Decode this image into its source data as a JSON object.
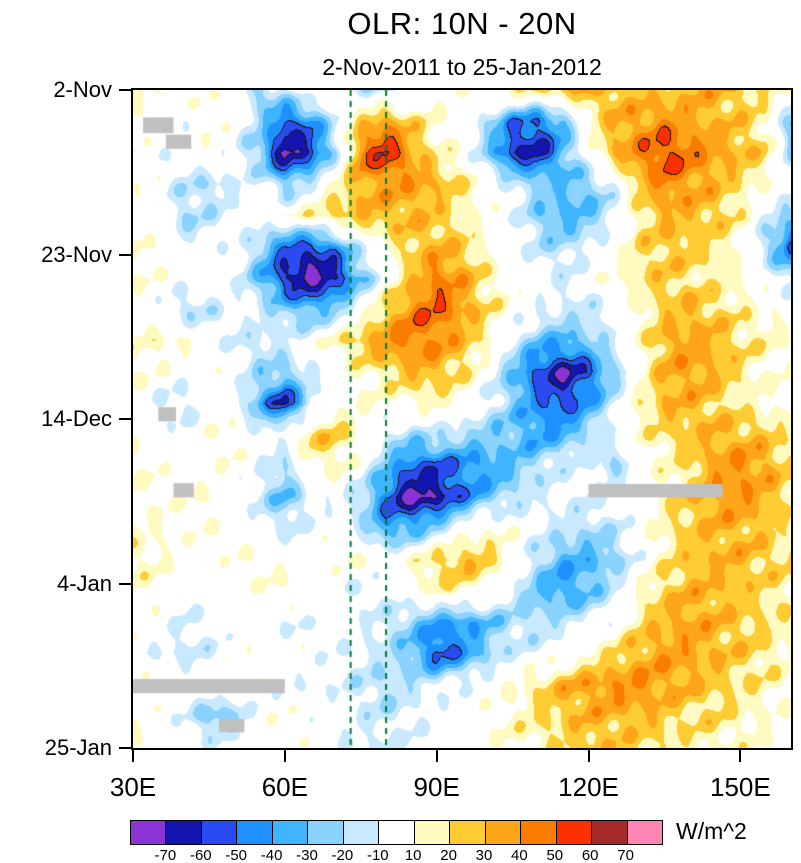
{
  "chart_data": {
    "type": "heatmap",
    "title": "OLR: 10N - 20N",
    "subtitle": "2-Nov-2011 to 25-Jan-2012",
    "units": "W/m^2",
    "xlim": [
      30,
      160
    ],
    "ylim_days": [
      0,
      84
    ],
    "xticks": [
      {
        "lon": 30,
        "label": "30E"
      },
      {
        "lon": 60,
        "label": "60E"
      },
      {
        "lon": 90,
        "label": "90E"
      },
      {
        "lon": 120,
        "label": "120E"
      },
      {
        "lon": 150,
        "label": "150E"
      }
    ],
    "yticks": [
      {
        "day": 0,
        "label": "2-Nov"
      },
      {
        "day": 21,
        "label": "23-Nov"
      },
      {
        "day": 42,
        "label": "14-Dec"
      },
      {
        "day": 63,
        "label": "4-Jan"
      },
      {
        "day": 84,
        "label": "25-Jan"
      }
    ],
    "reference_lines": {
      "color": "#007A33",
      "style": "dashed",
      "lons": [
        73,
        80
      ]
    },
    "missing_data_color": "#C0C0C0",
    "missing_patches": [
      {
        "lon": [
          32,
          38
        ],
        "day": [
          3.5,
          5.5
        ]
      },
      {
        "lon": [
          36.5,
          41.5
        ],
        "day": [
          5.7,
          7.5
        ]
      },
      {
        "lon": [
          35,
          38.5
        ],
        "day": [
          40.5,
          42.3
        ]
      },
      {
        "lon": [
          38,
          42
        ],
        "day": [
          50.2,
          52
        ]
      },
      {
        "lon": [
          120,
          146.5
        ],
        "day": [
          50.3,
          52
        ]
      },
      {
        "lon": [
          30,
          60
        ],
        "day": [
          75.2,
          77
        ]
      },
      {
        "lon": [
          47,
          52
        ],
        "day": [
          80.3,
          82
        ]
      }
    ],
    "colorbar": {
      "levels": [
        -70,
        -60,
        -50,
        -40,
        -30,
        -20,
        -10,
        10,
        20,
        30,
        40,
        50,
        60,
        70
      ],
      "colors": [
        "#8A33D6",
        "#1414AE",
        "#2B4BF2",
        "#1E90FF",
        "#3FB4FF",
        "#8AD2FF",
        "#C8E9FF",
        "#FFFFFF",
        "#FFFAC0",
        "#FFCC33",
        "#FFA519",
        "#FA7D00",
        "#FD3000",
        "#A52A2A",
        "#FF85B5"
      ]
    },
    "grid": {
      "lons": [
        30,
        35,
        40,
        45,
        50,
        55,
        60,
        65,
        70,
        75,
        80,
        85,
        90,
        95,
        100,
        105,
        110,
        115,
        120,
        125,
        130,
        135,
        140,
        145,
        150,
        155,
        160
      ],
      "days": [
        0,
        4,
        8,
        12,
        16,
        20,
        24,
        28,
        32,
        36,
        40,
        44,
        48,
        52,
        56,
        60,
        64,
        68,
        72,
        76,
        80,
        84
      ],
      "values": [
        [
          10,
          8,
          5,
          5,
          0,
          -25,
          -12,
          5,
          0,
          -15,
          -15,
          -8,
          5,
          8,
          12,
          15,
          20,
          25,
          30,
          30,
          26,
          25,
          30,
          30,
          25,
          18,
          10
        ],
        [
          8,
          2,
          -5,
          5,
          0,
          -20,
          -55,
          -45,
          -10,
          25,
          38,
          22,
          10,
          0,
          -20,
          -45,
          -52,
          -32,
          10,
          30,
          35,
          40,
          35,
          30,
          25,
          15,
          -30
        ],
        [
          5,
          -5,
          0,
          5,
          -5,
          -30,
          -75,
          -62,
          -20,
          45,
          62,
          35,
          15,
          5,
          -25,
          -60,
          -66,
          -35,
          0,
          30,
          42,
          56,
          46,
          35,
          30,
          22,
          -22
        ],
        [
          5,
          0,
          -15,
          -20,
          -10,
          -5,
          -28,
          -12,
          15,
          30,
          36,
          36,
          30,
          20,
          5,
          -12,
          -22,
          -30,
          -28,
          -8,
          26,
          42,
          36,
          30,
          20,
          10,
          0
        ],
        [
          5,
          -5,
          -20,
          -15,
          -5,
          0,
          5,
          15,
          25,
          30,
          30,
          30,
          25,
          15,
          5,
          -5,
          -25,
          -35,
          -30,
          -15,
          15,
          30,
          30,
          25,
          15,
          -10,
          -25
        ],
        [
          10,
          5,
          -10,
          -5,
          0,
          -25,
          -50,
          -58,
          -42,
          -10,
          10,
          25,
          30,
          25,
          10,
          0,
          -15,
          -20,
          -10,
          0,
          20,
          26,
          25,
          20,
          10,
          -20,
          -52
        ],
        [
          10,
          5,
          0,
          0,
          -5,
          -30,
          -62,
          -76,
          -65,
          -30,
          0,
          25,
          45,
          35,
          15,
          5,
          -5,
          -10,
          0,
          10,
          20,
          25,
          20,
          15,
          10,
          0,
          -20
        ],
        [
          5,
          -5,
          -20,
          -15,
          -5,
          -10,
          -25,
          -36,
          -25,
          0,
          25,
          42,
          50,
          36,
          20,
          5,
          -5,
          -12,
          -15,
          -5,
          10,
          25,
          30,
          25,
          15,
          10,
          5
        ],
        [
          10,
          15,
          10,
          0,
          -10,
          -15,
          -10,
          0,
          15,
          30,
          40,
          45,
          40,
          30,
          15,
          -10,
          -30,
          -35,
          -25,
          -10,
          10,
          30,
          35,
          30,
          20,
          15,
          10
        ],
        [
          10,
          5,
          0,
          5,
          0,
          -20,
          -25,
          -10,
          0,
          10,
          20,
          30,
          30,
          20,
          0,
          -30,
          -55,
          -70,
          -55,
          -25,
          5,
          30,
          36,
          30,
          20,
          10,
          5
        ],
        [
          5,
          -10,
          -15,
          0,
          -5,
          -35,
          -65,
          -18,
          5,
          10,
          5,
          10,
          15,
          5,
          -10,
          -25,
          -45,
          -56,
          -40,
          -15,
          15,
          30,
          30,
          25,
          15,
          10,
          5
        ],
        [
          5,
          0,
          -5,
          5,
          10,
          -10,
          0,
          22,
          26,
          10,
          -10,
          -20,
          -15,
          -20,
          -25,
          -30,
          -40,
          -35,
          -20,
          -5,
          10,
          20,
          25,
          30,
          30,
          25,
          15
        ],
        [
          10,
          5,
          0,
          5,
          5,
          -5,
          -22,
          12,
          15,
          0,
          -30,
          -52,
          -55,
          -45,
          -40,
          -30,
          -20,
          -10,
          -5,
          -25,
          0,
          10,
          20,
          35,
          40,
          35,
          20
        ],
        [
          10,
          5,
          5,
          10,
          0,
          -15,
          -32,
          -10,
          -5,
          -20,
          -50,
          -76,
          -70,
          -50,
          -30,
          -20,
          -10,
          -5,
          -10,
          -5,
          5,
          15,
          25,
          35,
          40,
          30,
          20
        ],
        [
          10,
          10,
          5,
          5,
          5,
          -5,
          -15,
          -5,
          0,
          -15,
          -40,
          -36,
          -20,
          0,
          10,
          5,
          -5,
          -15,
          -20,
          -15,
          0,
          15,
          25,
          30,
          30,
          25,
          15
        ],
        [
          15,
          10,
          5,
          0,
          5,
          10,
          5,
          0,
          5,
          10,
          0,
          10,
          25,
          30,
          25,
          5,
          -20,
          -35,
          -35,
          -25,
          -5,
          15,
          25,
          30,
          30,
          25,
          20
        ],
        [
          10,
          5,
          0,
          -5,
          0,
          5,
          10,
          5,
          -5,
          -10,
          -5,
          5,
          15,
          15,
          5,
          -10,
          -30,
          -42,
          -30,
          -15,
          10,
          25,
          30,
          30,
          25,
          20,
          15
        ],
        [
          5,
          0,
          -10,
          -5,
          0,
          -5,
          -10,
          -5,
          0,
          -5,
          -15,
          -25,
          -40,
          -42,
          -30,
          -20,
          -20,
          -15,
          -10,
          0,
          20,
          30,
          36,
          30,
          25,
          20,
          15
        ],
        [
          0,
          -10,
          -15,
          -10,
          0,
          5,
          5,
          0,
          -5,
          -10,
          -15,
          -30,
          -56,
          -45,
          -25,
          -10,
          -5,
          0,
          10,
          20,
          30,
          36,
          35,
          30,
          25,
          20,
          10
        ],
        [
          5,
          0,
          0,
          5,
          5,
          0,
          -5,
          -10,
          -5,
          -15,
          -20,
          -15,
          -10,
          -5,
          0,
          10,
          20,
          30,
          36,
          40,
          40,
          35,
          30,
          25,
          20,
          15,
          10
        ],
        [
          5,
          0,
          -5,
          -32,
          -25,
          0,
          5,
          0,
          -5,
          -10,
          -15,
          -10,
          -5,
          0,
          5,
          10,
          20,
          25,
          30,
          30,
          30,
          25,
          20,
          20,
          15,
          10,
          5
        ],
        [
          10,
          5,
          0,
          -5,
          0,
          5,
          5,
          0,
          -5,
          -10,
          -10,
          -5,
          0,
          5,
          5,
          10,
          15,
          20,
          25,
          25,
          20,
          20,
          15,
          15,
          10,
          10,
          5
        ]
      ]
    }
  }
}
